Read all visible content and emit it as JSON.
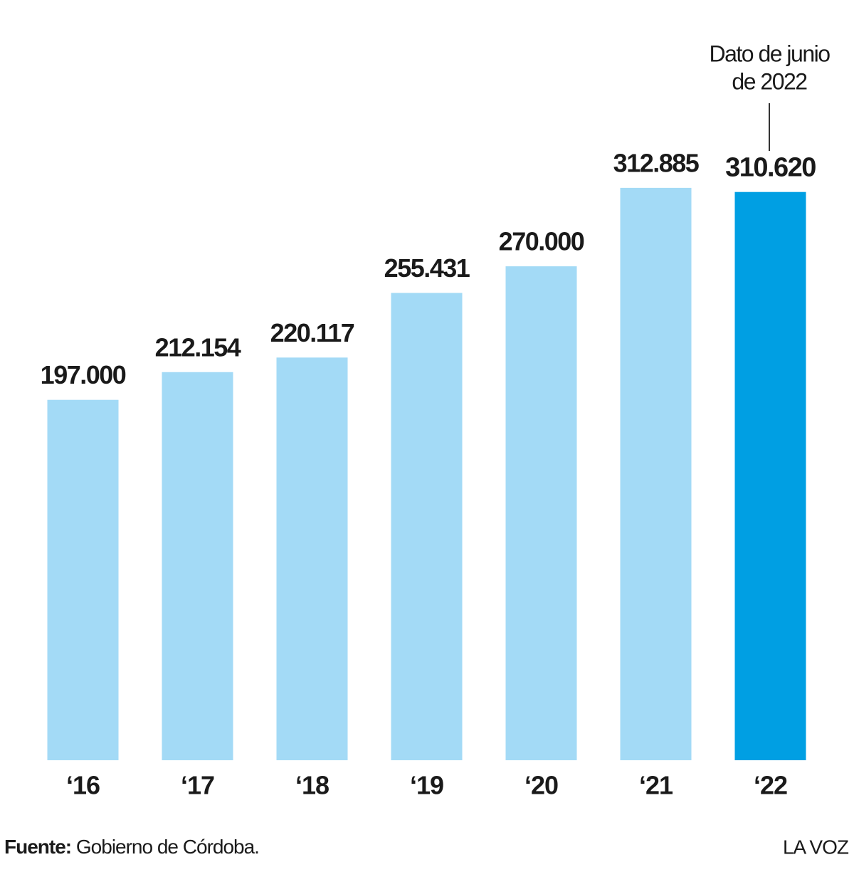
{
  "chart_data": {
    "type": "bar",
    "categories": [
      "‘16",
      "‘17",
      "‘18",
      "‘19",
      "‘20",
      "‘21",
      "‘22"
    ],
    "values": [
      197000,
      212154,
      220117,
      255431,
      270000,
      312885,
      310620
    ],
    "value_labels": [
      "197.000",
      "212.154",
      "220.117",
      "255.431",
      "270.000",
      "312.885",
      "310.620"
    ],
    "colors": [
      "#a3daf6",
      "#a3daf6",
      "#a3daf6",
      "#a3daf6",
      "#a3daf6",
      "#a3daf6",
      "#009fe3"
    ],
    "ylim": [
      0,
      400000
    ],
    "annotation": [
      "Dato de junio",
      "de 2022"
    ],
    "source_label": "Fuente:",
    "source": "Gobierno de Córdoba.",
    "credit": "LA VOZ"
  }
}
